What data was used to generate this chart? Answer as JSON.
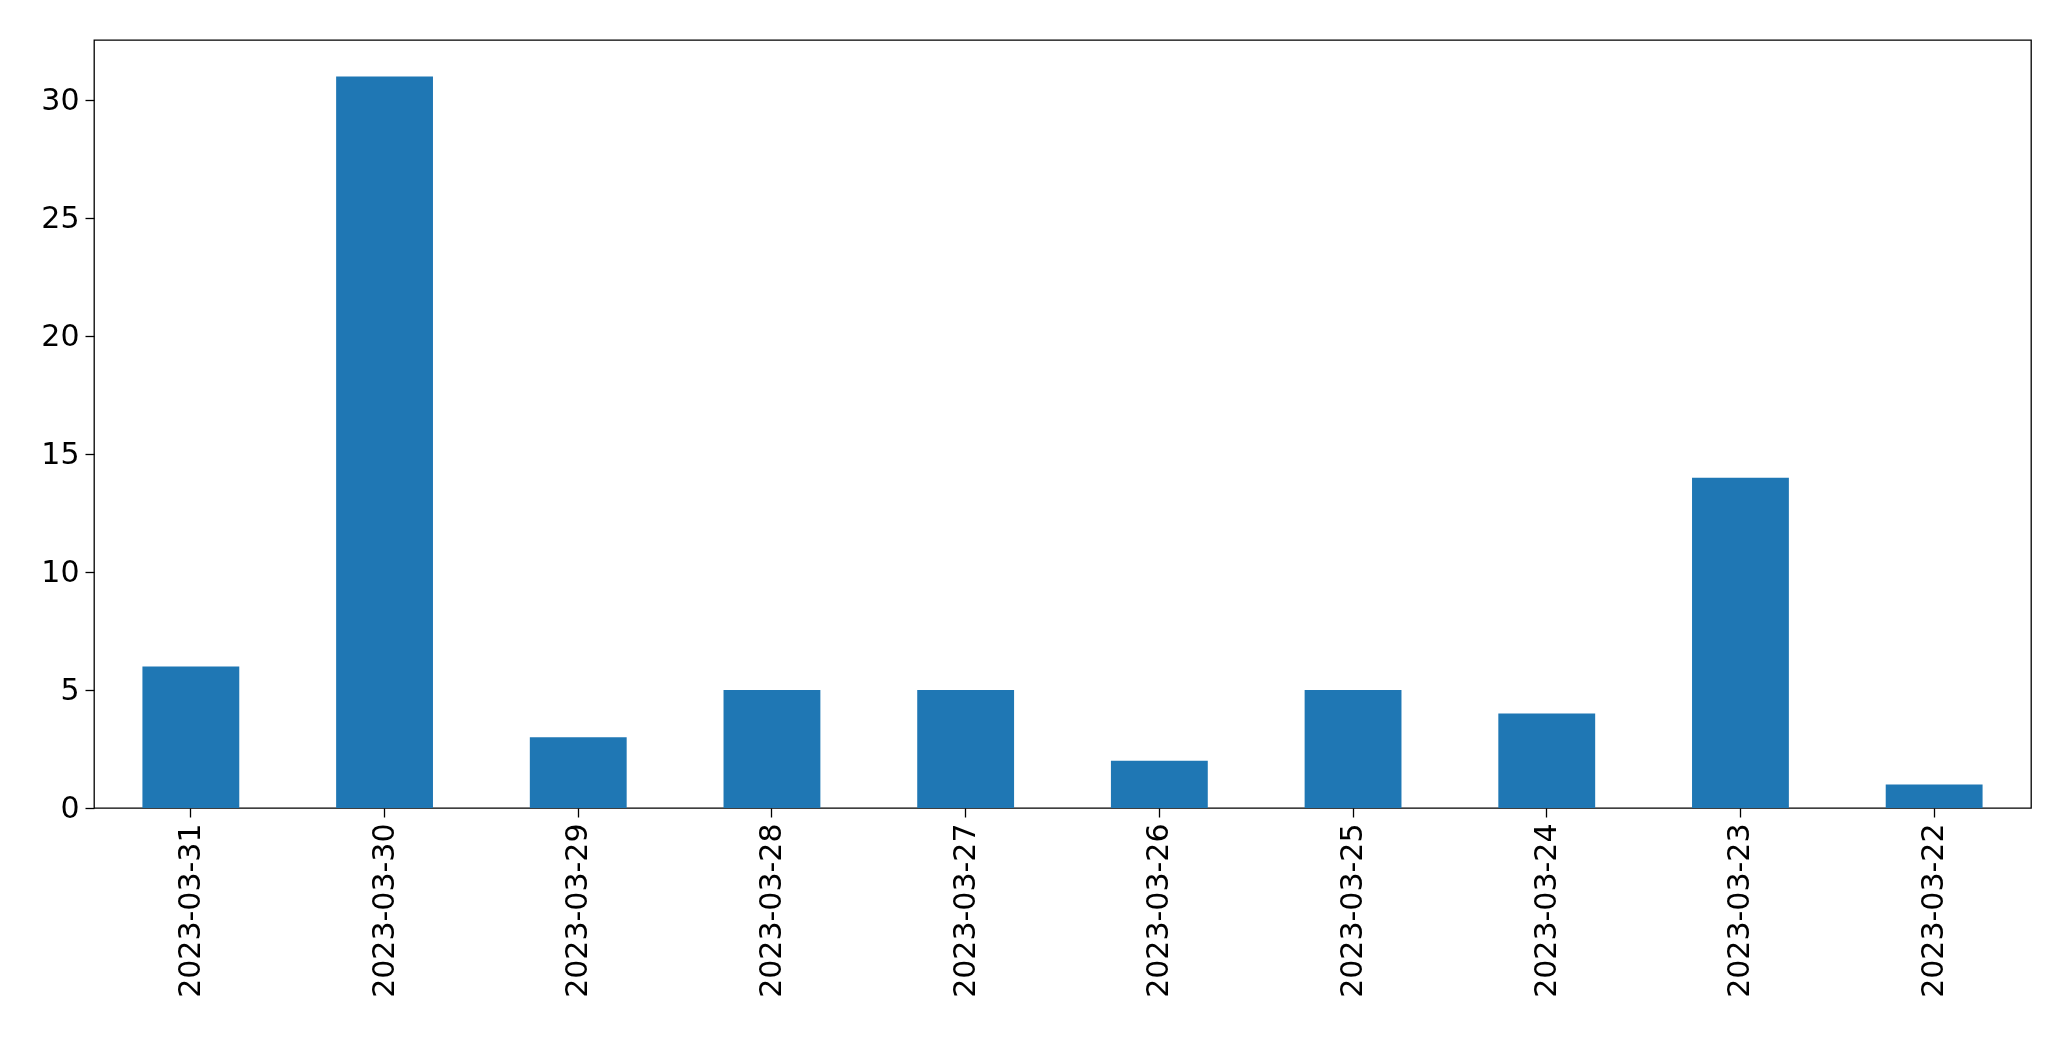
{
  "chart_data": {
    "type": "bar",
    "categories": [
      "2023-03-31",
      "2023-03-30",
      "2023-03-29",
      "2023-03-28",
      "2023-03-27",
      "2023-03-26",
      "2023-03-25",
      "2023-03-24",
      "2023-03-23",
      "2023-03-22"
    ],
    "values": [
      6,
      31,
      3,
      5,
      5,
      2,
      5,
      4,
      14,
      1
    ],
    "color": "#1f77b4",
    "ylim": [
      0,
      32.55
    ],
    "yticks": [
      0,
      5,
      10,
      15,
      20,
      25,
      30
    ],
    "grid": false
  }
}
